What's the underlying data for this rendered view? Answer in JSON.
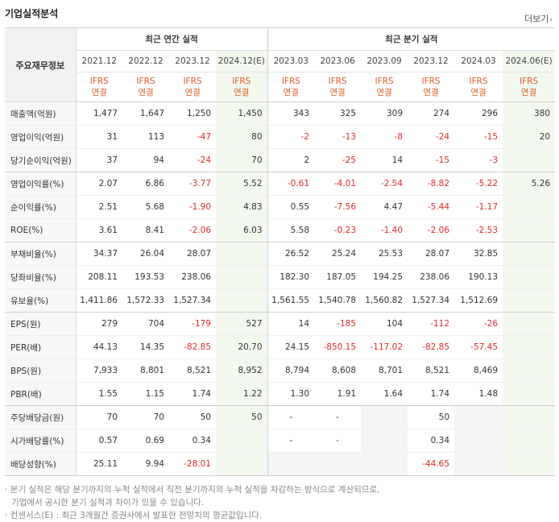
{
  "header": {
    "title": "기업실적분석",
    "more_label": "더보기"
  },
  "table": {
    "rowhead_label": "주요재무정보",
    "group_annual": "최근 연간 실적",
    "group_quarter": "최근 분기 실적",
    "periods": [
      "2021.12",
      "2022.12",
      "2023.12",
      "2024.12(E)",
      "2023.03",
      "2023.06",
      "2023.09",
      "2023.12",
      "2024.03",
      "2024.06(E)"
    ],
    "ifrs": [
      "IFRS",
      "IFRS",
      "IFRS",
      "IFRS",
      "IFRS",
      "IFRS",
      "IFRS",
      "IFRS",
      "IFRS",
      "IFRS"
    ],
    "consol": [
      "연결",
      "연결",
      "연결",
      "연결",
      "연결",
      "연결",
      "연결",
      "연결",
      "연결",
      "연결"
    ],
    "rows": [
      {
        "label": "매출액(억원)",
        "values": [
          "1,477",
          "1,647",
          "1,250",
          "1,450",
          "343",
          "325",
          "309",
          "274",
          "296",
          "380"
        ]
      },
      {
        "label": "영업이익(억원)",
        "values": [
          "31",
          "113",
          "-47",
          "80",
          "-2",
          "-13",
          "-8",
          "-24",
          "-15",
          "20"
        ]
      },
      {
        "label": "당기순이익(억원)",
        "values": [
          "37",
          "94",
          "-24",
          "70",
          "2",
          "-25",
          "14",
          "-15",
          "-3",
          ""
        ]
      },
      {
        "label": "영업이익률(%)",
        "values": [
          "2.07",
          "6.86",
          "-3.77",
          "5.52",
          "-0.61",
          "-4.01",
          "-2.54",
          "-8.82",
          "-5.22",
          "5.26"
        ]
      },
      {
        "label": "순이익률(%)",
        "values": [
          "2.51",
          "5.68",
          "-1.90",
          "4.83",
          "0.55",
          "-7.56",
          "4.47",
          "-5.44",
          "-1.17",
          ""
        ]
      },
      {
        "label": "ROE(%)",
        "values": [
          "3.61",
          "8.41",
          "-2.06",
          "6.03",
          "5.58",
          "-0.23",
          "-1.40",
          "-2.06",
          "-2.53",
          ""
        ]
      },
      {
        "label": "부채비율(%)",
        "values": [
          "34.37",
          "26.04",
          "28.07",
          "",
          "26.52",
          "25.24",
          "25.53",
          "28.07",
          "32.85",
          ""
        ]
      },
      {
        "label": "당좌비율(%)",
        "values": [
          "208.11",
          "193.53",
          "238.06",
          "",
          "182.30",
          "187.05",
          "194.25",
          "238.06",
          "190.13",
          ""
        ]
      },
      {
        "label": "유보율(%)",
        "values": [
          "1,411.86",
          "1,572.33",
          "1,527.34",
          "",
          "1,561.55",
          "1,540.78",
          "1,560.82",
          "1,527.34",
          "1,512.69",
          ""
        ]
      },
      {
        "label": "EPS(원)",
        "values": [
          "279",
          "704",
          "-179",
          "527",
          "14",
          "-185",
          "104",
          "-112",
          "-26",
          ""
        ]
      },
      {
        "label": "PER(배)",
        "values": [
          "44.13",
          "14.35",
          "-82.85",
          "20.70",
          "24.15",
          "-850.15",
          "-117.02",
          "-82.85",
          "-57.45",
          ""
        ]
      },
      {
        "label": "BPS(원)",
        "values": [
          "7,933",
          "8,801",
          "8,521",
          "8,952",
          "8,794",
          "8,608",
          "8,701",
          "8,521",
          "8,469",
          ""
        ]
      },
      {
        "label": "PBR(배)",
        "values": [
          "1.55",
          "1.15",
          "1.74",
          "1.22",
          "1.30",
          "1.91",
          "1.64",
          "1.74",
          "1.48",
          ""
        ]
      },
      {
        "label": "주당배당금(원)",
        "values": [
          "70",
          "70",
          "50",
          "50",
          "-",
          "-",
          "",
          "50",
          "",
          ""
        ]
      },
      {
        "label": "시가배당률(%)",
        "values": [
          "0.57",
          "0.69",
          "0.34",
          "",
          "-",
          "-",
          "",
          "0.34",
          "",
          ""
        ]
      },
      {
        "label": "배당성향(%)",
        "values": [
          "25.11",
          "9.94",
          "-28.01",
          "",
          "",
          "",
          "",
          "-44.65",
          "",
          ""
        ]
      }
    ]
  },
  "notes": [
    "· 분기 실적은 해당 분기까지의 누적 실적에서 직전 분기까지의 누적 실적을 차감하는 방식으로 계산되므로,",
    "기업에서 공시한 분기 실적과 차이가 있을 수 있습니다.",
    "· 컨센서스(E) : 최근 3개월간 증권사에서 발표한 전망치의 평균값입니다."
  ],
  "colors": {
    "negative": "#e12a2a",
    "ifrs": "#e35b26",
    "estimate_bg": "#f3f8ef",
    "label_bg": "#f7f7f7"
  }
}
